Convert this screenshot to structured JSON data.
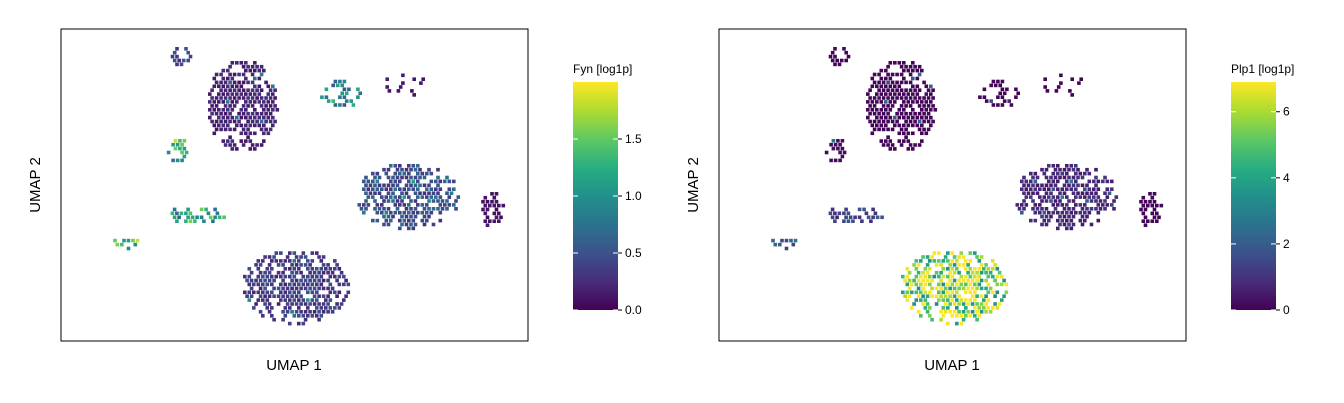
{
  "chart_data": [
    {
      "type": "scatter",
      "subtype": "umap-hexbin",
      "title": "",
      "xlabel": "UMAP 1",
      "ylabel": "UMAP 2",
      "legend": {
        "title": "Fyn [log1p]",
        "placement": "right",
        "colormap": "viridis",
        "range": [
          0,
          2.0
        ],
        "ticks": [
          0.0,
          0.5,
          1.0,
          1.5
        ],
        "tick_labels": [
          "0.0",
          "0.5",
          "1.0",
          "1.5"
        ]
      },
      "clusters": [
        {
          "id": "top-small-a",
          "mean": 0.4
        },
        {
          "id": "top-large",
          "mean": 0.2
        },
        {
          "id": "upper-right-triangle",
          "mean": 0.9
        },
        {
          "id": "far-top-right",
          "mean": 0.15
        },
        {
          "id": "left-middle",
          "mean": 1.2
        },
        {
          "id": "center-right-large",
          "mean": 0.5
        },
        {
          "id": "left-lower",
          "mean": 1.1
        },
        {
          "id": "far-left-bottom",
          "mean": 1.4
        },
        {
          "id": "bottom-large",
          "mean": 0.35
        },
        {
          "id": "far-right",
          "mean": 0.1
        }
      ]
    },
    {
      "type": "scatter",
      "subtype": "umap-hexbin",
      "title": "",
      "xlabel": "UMAP 1",
      "ylabel": "UMAP 2",
      "legend": {
        "title": "Plp1 [log1p]",
        "placement": "right",
        "colormap": "viridis",
        "range": [
          0,
          6.9
        ],
        "ticks": [
          0,
          2,
          4,
          6
        ],
        "tick_labels": [
          "0",
          "2",
          "4",
          "6"
        ]
      },
      "clusters": [
        {
          "id": "top-small-a",
          "mean": 0.1
        },
        {
          "id": "top-large",
          "mean": 0.1
        },
        {
          "id": "upper-right-triangle",
          "mean": 0.1
        },
        {
          "id": "far-top-right",
          "mean": 0.1
        },
        {
          "id": "left-middle",
          "mean": 0.2
        },
        {
          "id": "center-right-large",
          "mean": 0.8
        },
        {
          "id": "left-lower",
          "mean": 1.3
        },
        {
          "id": "far-left-bottom",
          "mean": 2.0
        },
        {
          "id": "bottom-large",
          "mean": 5.8
        },
        {
          "id": "far-right",
          "mean": 0.1
        }
      ]
    }
  ]
}
